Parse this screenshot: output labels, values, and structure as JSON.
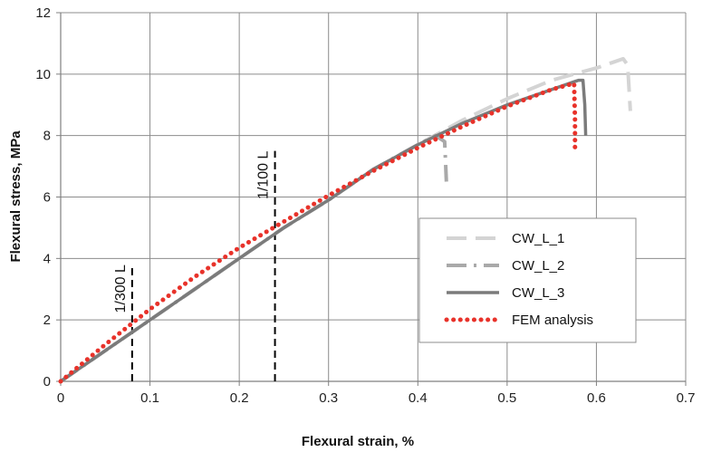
{
  "chart_data": {
    "type": "line",
    "title": "",
    "xlabel": "Flexural strain, %",
    "ylabel": "Flexural stress, MPa",
    "xlim": [
      0,
      0.7
    ],
    "ylim": [
      0,
      12
    ],
    "x_ticks": [
      0,
      0.1,
      0.2,
      0.3,
      0.4,
      0.5,
      0.6,
      0.7
    ],
    "x_tick_labels": [
      "0",
      "0.1",
      "0.2",
      "0.3",
      "0.4",
      "0.5",
      "0.6",
      "0.7"
    ],
    "y_ticks": [
      0,
      2,
      4,
      6,
      8,
      10,
      12
    ],
    "y_tick_labels": [
      "0",
      "2",
      "4",
      "6",
      "8",
      "10",
      "12"
    ],
    "grid": true,
    "legend_position": "lower-right",
    "series": [
      {
        "name": "CW_L_1",
        "style": "long-dash",
        "color": "#d4d4d4",
        "x": [
          0,
          0.05,
          0.1,
          0.15,
          0.2,
          0.25,
          0.3,
          0.35,
          0.4,
          0.45,
          0.5,
          0.55,
          0.6,
          0.62,
          0.63,
          0.635,
          0.638
        ],
        "y": [
          0,
          1.0,
          2.0,
          3.0,
          4.0,
          5.0,
          5.9,
          6.9,
          7.7,
          8.5,
          9.2,
          9.8,
          10.2,
          10.4,
          10.5,
          10.3,
          8.8
        ]
      },
      {
        "name": "CW_L_2",
        "style": "dash-dot",
        "color": "#a9a9a9",
        "x": [
          0,
          0.05,
          0.1,
          0.15,
          0.2,
          0.25,
          0.3,
          0.35,
          0.4,
          0.42,
          0.43,
          0.432
        ],
        "y": [
          0,
          1.0,
          2.0,
          3.0,
          4.0,
          5.0,
          5.9,
          6.9,
          7.7,
          8.0,
          7.8,
          6.5
        ]
      },
      {
        "name": "CW_L_3",
        "style": "solid",
        "color": "#7b7b7b",
        "x": [
          0,
          0.05,
          0.1,
          0.15,
          0.2,
          0.25,
          0.3,
          0.35,
          0.4,
          0.45,
          0.5,
          0.55,
          0.58,
          0.585,
          0.587,
          0.588
        ],
        "y": [
          0,
          1.0,
          2.0,
          3.0,
          4.0,
          5.0,
          5.9,
          6.9,
          7.7,
          8.4,
          9.0,
          9.5,
          9.8,
          9.8,
          9.0,
          8.0
        ]
      },
      {
        "name": "FEM analysis",
        "style": "dotted",
        "color": "#e8322a",
        "x": [
          0,
          0.05,
          0.1,
          0.15,
          0.2,
          0.25,
          0.3,
          0.35,
          0.4,
          0.45,
          0.5,
          0.55,
          0.575,
          0.576,
          0.576
        ],
        "y": [
          0,
          1.2,
          2.35,
          3.4,
          4.35,
          5.2,
          6.05,
          6.85,
          7.6,
          8.3,
          8.95,
          9.5,
          9.7,
          8.5,
          7.5
        ]
      }
    ],
    "annotations": [
      {
        "text": "1/300 L",
        "x": 0.08,
        "y_from": 0,
        "y_to": 3.8
      },
      {
        "text": "1/100 L",
        "x": 0.24,
        "y_from": 0,
        "y_to": 7.5
      }
    ]
  }
}
